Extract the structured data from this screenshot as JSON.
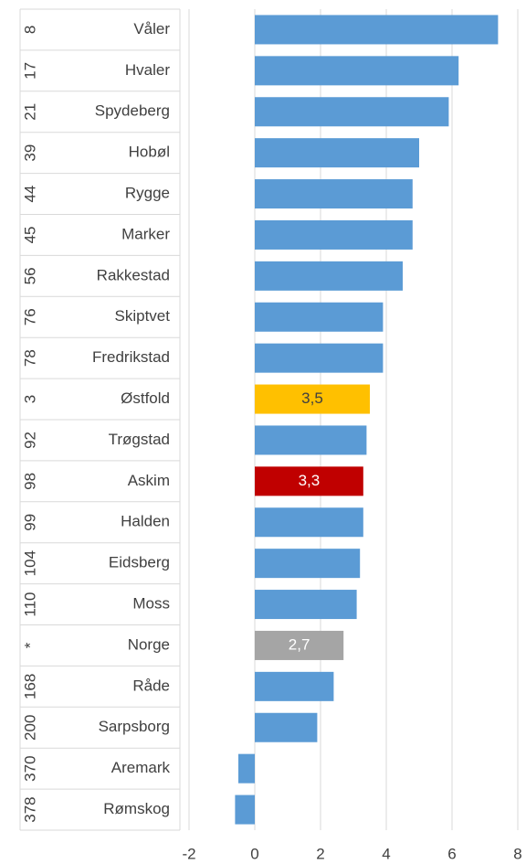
{
  "chart_data": {
    "type": "bar",
    "orientation": "horizontal",
    "ranks": [
      "8",
      "17",
      "21",
      "39",
      "44",
      "45",
      "56",
      "76",
      "78",
      "3",
      "92",
      "98",
      "99",
      "104",
      "110",
      "*",
      "168",
      "200",
      "370",
      "378"
    ],
    "categories": [
      "Våler",
      "Hvaler",
      "Spydeberg",
      "Hobøl",
      "Rygge",
      "Marker",
      "Rakkestad",
      "Skiptvet",
      "Fredrikstad",
      "Østfold",
      "Trøgstad",
      "Askim",
      "Halden",
      "Eidsberg",
      "Moss",
      "Norge",
      "Råde",
      "Sarpsborg",
      "Aremark",
      "Rømskog"
    ],
    "values": [
      7.4,
      6.2,
      5.9,
      5.0,
      4.8,
      4.8,
      4.5,
      3.9,
      3.9,
      3.5,
      3.4,
      3.3,
      3.3,
      3.2,
      3.1,
      2.7,
      2.4,
      1.9,
      -0.5,
      -0.6
    ],
    "value_labels": [
      null,
      null,
      null,
      null,
      null,
      null,
      null,
      null,
      null,
      "3,5",
      null,
      "3,3",
      null,
      null,
      null,
      "2,7",
      null,
      null,
      null,
      null
    ],
    "colors": [
      "#5b9bd5",
      "#5b9bd5",
      "#5b9bd5",
      "#5b9bd5",
      "#5b9bd5",
      "#5b9bd5",
      "#5b9bd5",
      "#5b9bd5",
      "#5b9bd5",
      "#ffc000",
      "#5b9bd5",
      "#c00000",
      "#5b9bd5",
      "#5b9bd5",
      "#5b9bd5",
      "#a5a5a5",
      "#5b9bd5",
      "#5b9bd5",
      "#5b9bd5",
      "#5b9bd5"
    ],
    "xlim": [
      -2,
      8
    ],
    "xticks": [
      -2,
      0,
      2,
      4,
      6,
      8
    ],
    "grid": true
  }
}
